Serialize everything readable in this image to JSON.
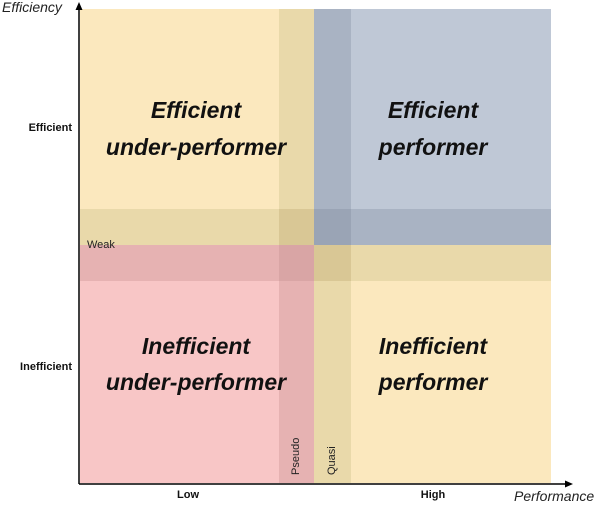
{
  "axes": {
    "y_title": "Efficiency",
    "x_title": "Performance",
    "y_ticks": [
      "Efficient",
      "Inefficient"
    ],
    "x_ticks": [
      "Low",
      "High"
    ]
  },
  "quadrants": {
    "top_left": {
      "line1": "Efficient",
      "line2": "under-performer",
      "color": "#fbe8be"
    },
    "top_right": {
      "line1": "Efficient",
      "line2": "performer",
      "color": "#bfc8d6"
    },
    "bottom_left": {
      "line1": "Inefficient",
      "line2": "under-performer",
      "color": "#f8c6c6"
    },
    "bottom_right": {
      "line1": "Inefficient",
      "line2": "performer",
      "color": "#fbe8be"
    }
  },
  "bands": {
    "horizontal_label": "Weak",
    "vertical_left_label": "Pseudo",
    "vertical_right_label": "Quasi",
    "band_color": "#e6d6a6"
  }
}
